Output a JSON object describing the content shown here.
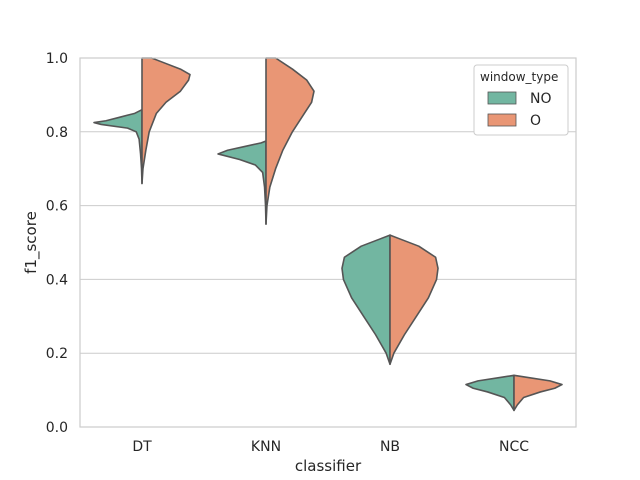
{
  "chart_data": {
    "type": "violin",
    "title": "",
    "xlabel": "classifier",
    "ylabel": "f1_score",
    "ylim": [
      0.0,
      1.0
    ],
    "yticks": [
      "0.0",
      "0.2",
      "0.4",
      "0.6",
      "0.8",
      "1.0"
    ],
    "grid": "horizontal",
    "categories": [
      "DT",
      "KNN",
      "NB",
      "NCC"
    ],
    "legend": {
      "title": "window_type",
      "position": "top-right",
      "entries": [
        {
          "name": "NO",
          "color": "#72b6a1"
        },
        {
          "name": "O",
          "color": "#e99675"
        }
      ]
    },
    "series": [
      {
        "name": "NO",
        "side": "left",
        "color": "#72b6a1",
        "violins": [
          {
            "category": "DT",
            "min": 0.66,
            "max": 0.86,
            "mode": 0.825,
            "profile": [
              [
                0.66,
                0
              ],
              [
                0.7,
                0.01
              ],
              [
                0.74,
                0.03
              ],
              [
                0.78,
                0.06
              ],
              [
                0.8,
                0.12
              ],
              [
                0.81,
                0.3
              ],
              [
                0.82,
                0.85
              ],
              [
                0.825,
                1.0
              ],
              [
                0.83,
                0.75
              ],
              [
                0.84,
                0.45
              ],
              [
                0.85,
                0.15
              ],
              [
                0.86,
                0
              ]
            ]
          },
          {
            "category": "KNN",
            "min": 0.55,
            "max": 0.775,
            "mode": 0.74,
            "profile": [
              [
                0.55,
                0
              ],
              [
                0.6,
                0.01
              ],
              [
                0.65,
                0.03
              ],
              [
                0.69,
                0.07
              ],
              [
                0.71,
                0.22
              ],
              [
                0.725,
                0.55
              ],
              [
                0.74,
                1.0
              ],
              [
                0.75,
                0.8
              ],
              [
                0.76,
                0.45
              ],
              [
                0.77,
                0.1
              ],
              [
                0.775,
                0
              ]
            ]
          },
          {
            "category": "NB",
            "min": 0.17,
            "max": 0.52,
            "mode": 0.43,
            "profile": [
              [
                0.17,
                0
              ],
              [
                0.2,
                0.08
              ],
              [
                0.25,
                0.3
              ],
              [
                0.3,
                0.55
              ],
              [
                0.35,
                0.8
              ],
              [
                0.4,
                0.97
              ],
              [
                0.43,
                1.0
              ],
              [
                0.46,
                0.95
              ],
              [
                0.49,
                0.6
              ],
              [
                0.51,
                0.2
              ],
              [
                0.52,
                0
              ]
            ]
          },
          {
            "category": "NCC",
            "min": 0.045,
            "max": 0.14,
            "mode": 0.115,
            "profile": [
              [
                0.045,
                0
              ],
              [
                0.06,
                0.07
              ],
              [
                0.08,
                0.2
              ],
              [
                0.095,
                0.55
              ],
              [
                0.105,
                0.85
              ],
              [
                0.115,
                1.0
              ],
              [
                0.125,
                0.75
              ],
              [
                0.135,
                0.25
              ],
              [
                0.14,
                0
              ]
            ]
          }
        ]
      },
      {
        "name": "O",
        "side": "right",
        "color": "#e99675",
        "violins": [
          {
            "category": "DT",
            "min": 0.66,
            "max": 1.0,
            "mode": 0.955,
            "profile": [
              [
                0.66,
                0
              ],
              [
                0.7,
                0.02
              ],
              [
                0.75,
                0.08
              ],
              [
                0.8,
                0.15
              ],
              [
                0.85,
                0.3
              ],
              [
                0.88,
                0.5
              ],
              [
                0.91,
                0.8
              ],
              [
                0.94,
                0.97
              ],
              [
                0.955,
                1.0
              ],
              [
                0.97,
                0.8
              ],
              [
                0.99,
                0.4
              ],
              [
                1.0,
                0.2
              ]
            ]
          },
          {
            "category": "KNN",
            "min": 0.55,
            "max": 1.0,
            "mode": 0.91,
            "profile": [
              [
                0.55,
                0
              ],
              [
                0.6,
                0.02
              ],
              [
                0.65,
                0.08
              ],
              [
                0.7,
                0.2
              ],
              [
                0.75,
                0.35
              ],
              [
                0.8,
                0.55
              ],
              [
                0.85,
                0.8
              ],
              [
                0.88,
                0.95
              ],
              [
                0.91,
                1.0
              ],
              [
                0.94,
                0.85
              ],
              [
                0.97,
                0.55
              ],
              [
                1.0,
                0.2
              ]
            ]
          },
          {
            "category": "NB",
            "min": 0.17,
            "max": 0.52,
            "mode": 0.43,
            "profile": [
              [
                0.17,
                0
              ],
              [
                0.2,
                0.08
              ],
              [
                0.25,
                0.3
              ],
              [
                0.3,
                0.55
              ],
              [
                0.35,
                0.8
              ],
              [
                0.4,
                0.97
              ],
              [
                0.43,
                1.0
              ],
              [
                0.46,
                0.95
              ],
              [
                0.49,
                0.6
              ],
              [
                0.51,
                0.2
              ],
              [
                0.52,
                0
              ]
            ]
          },
          {
            "category": "NCC",
            "min": 0.045,
            "max": 0.14,
            "mode": 0.115,
            "profile": [
              [
                0.045,
                0
              ],
              [
                0.06,
                0.07
              ],
              [
                0.08,
                0.2
              ],
              [
                0.095,
                0.55
              ],
              [
                0.105,
                0.85
              ],
              [
                0.115,
                1.0
              ],
              [
                0.125,
                0.75
              ],
              [
                0.135,
                0.25
              ],
              [
                0.14,
                0
              ]
            ]
          }
        ]
      }
    ]
  }
}
